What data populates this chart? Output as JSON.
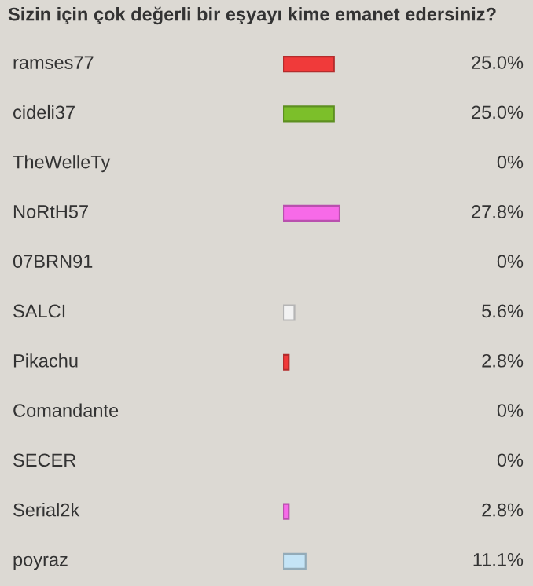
{
  "chart_data": {
    "type": "bar",
    "orientation": "horizontal",
    "title": "Sizin için çok değerli bir eşyayı kime emanet edersiniz?",
    "categories": [
      "ramses77",
      "cideli37",
      "TheWelleTy",
      "NoRtH57",
      "07BRN91",
      "SALCI",
      "Pikachu",
      "Comandante",
      "SECER",
      "Serial2k",
      "poyraz"
    ],
    "values": [
      25.0,
      25.0,
      0,
      27.8,
      0,
      5.6,
      2.8,
      0,
      0,
      2.8,
      11.1
    ],
    "colors": [
      "#f03a3a",
      "#7cbf2a",
      "#f5b51c",
      "#f76ae8",
      "#c4e4f6",
      "#f2f2f2",
      "#f03a3a",
      "#7cbf2a",
      "#f5b51c",
      "#f76ae8",
      "#c4e4f6"
    ],
    "value_labels": [
      "25.0%",
      "25.0%",
      "0%",
      "27.8%",
      "0%",
      "5.6%",
      "2.8%",
      "0%",
      "0%",
      "2.8%",
      "11.1%"
    ]
  }
}
